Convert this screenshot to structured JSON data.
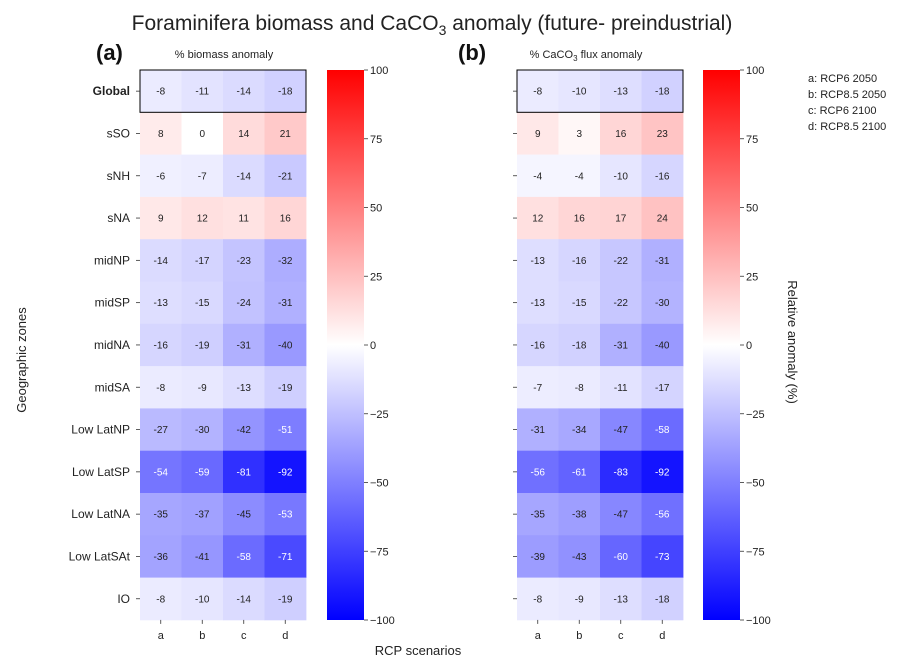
{
  "title_main": "Foraminifera biomass and CaCO",
  "title_sub": "3",
  "title_rest": " anomaly (future- preindustrial)",
  "ylabel": "Geographic zones",
  "xlabel": "RCP scenarios",
  "colorbar_label": "Relative anomaly (%)",
  "legend": [
    "a: RCP6 2050",
    "b: RCP8.5 2050",
    "c: RCP6 2100",
    "d: RCP8.5 2100"
  ],
  "colors": {
    "low": "#0000ff",
    "mid": "#ffffff",
    "high": "#ff0000"
  },
  "chart_data": [
    {
      "type": "heatmap",
      "panel": "(a)",
      "subtitle": "% biomass anomaly",
      "columns": [
        "a",
        "b",
        "c",
        "d"
      ],
      "rows": [
        "Global",
        "sSO",
        "sNH",
        "sNA",
        "midNP",
        "midSP",
        "midNA",
        "midSA",
        "Low LatNP",
        "Low LatSP",
        "Low LatNA",
        "Low LatSAt",
        "IO"
      ],
      "values": [
        [
          -8,
          -11,
          -14,
          -18
        ],
        [
          8,
          0,
          14,
          21
        ],
        [
          -6,
          -7,
          -14,
          -21
        ],
        [
          9,
          12,
          11,
          16
        ],
        [
          -14,
          -17,
          -23,
          -32
        ],
        [
          -13,
          -15,
          -24,
          -31
        ],
        [
          -16,
          -19,
          -31,
          -40
        ],
        [
          -8,
          -9,
          -13,
          -19
        ],
        [
          -27,
          -30,
          -42,
          -51
        ],
        [
          -54,
          -59,
          -81,
          -92
        ],
        [
          -35,
          -37,
          -45,
          -53
        ],
        [
          -36,
          -41,
          -58,
          -71
        ],
        [
          -8,
          -10,
          -14,
          -19
        ]
      ],
      "colorbar_ticks": [
        100,
        75,
        50,
        25,
        0,
        -25,
        -50,
        -75,
        -100
      ],
      "vmin": -100,
      "vmax": 100
    },
    {
      "type": "heatmap",
      "panel": "(b)",
      "subtitle": "% CaCO3 flux anomaly",
      "columns": [
        "a",
        "b",
        "c",
        "d"
      ],
      "rows": [
        "Global",
        "sSO",
        "sNH",
        "sNA",
        "midNP",
        "midSP",
        "midNA",
        "midSA",
        "Low LatNP",
        "Low LatSP",
        "Low LatNA",
        "Low LatSAt",
        "IO"
      ],
      "values": [
        [
          -8,
          -10,
          -13,
          -18
        ],
        [
          9,
          3,
          16,
          23
        ],
        [
          -4,
          -4,
          -10,
          -16
        ],
        [
          12,
          16,
          17,
          24
        ],
        [
          -13,
          -16,
          -22,
          -31
        ],
        [
          -13,
          -15,
          -22,
          -30
        ],
        [
          -16,
          -18,
          -31,
          -40
        ],
        [
          -7,
          -8,
          -11,
          -17
        ],
        [
          -31,
          -34,
          -47,
          -58
        ],
        [
          -56,
          -61,
          -83,
          -92
        ],
        [
          -35,
          -38,
          -47,
          -56
        ],
        [
          -39,
          -43,
          -60,
          -73
        ],
        [
          -8,
          -9,
          -13,
          -18
        ]
      ],
      "colorbar_ticks": [
        100,
        75,
        50,
        25,
        0,
        -25,
        -50,
        -75,
        -100
      ],
      "vmin": -100,
      "vmax": 100
    }
  ]
}
